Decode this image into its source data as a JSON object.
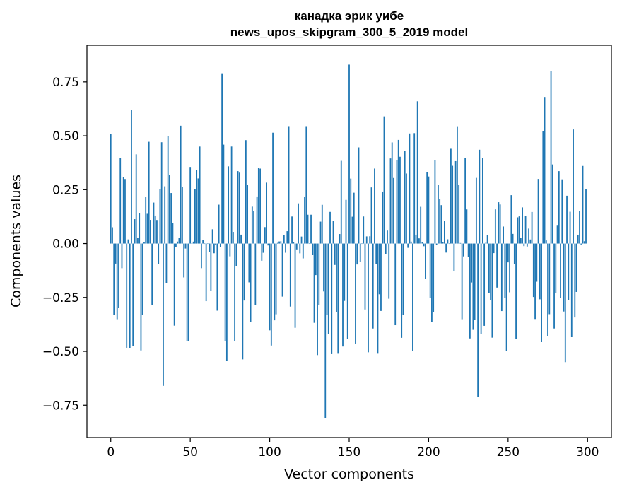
{
  "chart_data": {
    "type": "bar",
    "title": "канадка эрик уибе",
    "subtitle": "news_upos_skipgram_300_5_2019 model",
    "xlabel": "Vector components",
    "ylabel": "Components values",
    "xlim": [
      -15,
      315
    ],
    "ylim": [
      -0.9,
      0.92
    ],
    "xticks": [
      0,
      50,
      100,
      150,
      200,
      250,
      300
    ],
    "yticks": [
      -0.75,
      -0.5,
      -0.25,
      0.0,
      0.25,
      0.5,
      0.75
    ],
    "ytick_labels": [
      "−0.75",
      "−0.50",
      "−0.25",
      "0.00",
      "0.25",
      "0.50",
      "0.75"
    ],
    "bar_color": "#1f77b4",
    "grid": false,
    "legend": "none",
    "x": [
      0,
      13,
      33,
      70,
      135,
      150,
      172,
      193,
      231,
      273,
      277,
      286,
      297
    ],
    "values": [
      0.51,
      0.62,
      -0.66,
      0.79,
      -0.81,
      0.83,
      0.59,
      0.66,
      -0.71,
      0.68,
      0.8,
      -0.55,
      0.36
    ],
    "y_values_component_count": 300
  }
}
